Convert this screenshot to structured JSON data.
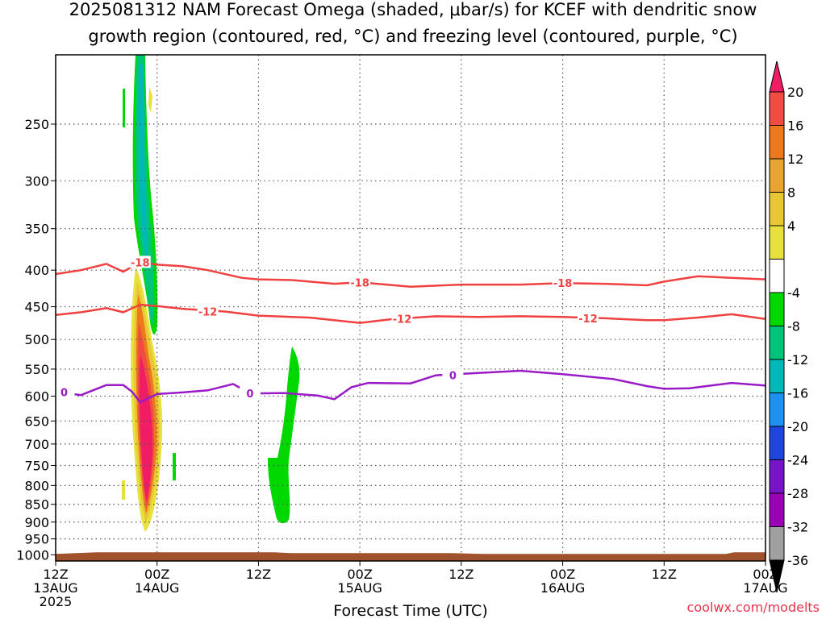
{
  "title_line1": "2025081312 NAM Forecast Omega (shaded, μbar/s) for KCEF with dendritic snow",
  "title_line2": "growth region (contoured, red, °C) and freezing level (contoured, purple, °C)",
  "credit": "coolwx.com/modelts",
  "chart_data": {
    "type": "heatmap",
    "title": "2025081312 NAM Forecast Omega (shaded, μbar/s) for KCEF with dendritic snow growth region (contoured, red, °C) and freezing level (contoured, purple, °C)",
    "xlabel": "Forecast Time (UTC)",
    "ylabel": "",
    "xlim_hours": [
      0,
      84
    ],
    "ylim_hpa": [
      1020,
      200
    ],
    "y_scale": "log",
    "x_ticks": [
      {
        "hour": 0,
        "label": [
          "12Z",
          "13AUG",
          "2025"
        ]
      },
      {
        "hour": 12,
        "label": [
          "00Z",
          "14AUG"
        ]
      },
      {
        "hour": 24,
        "label": [
          "12Z"
        ]
      },
      {
        "hour": 36,
        "label": [
          "00Z",
          "15AUG"
        ]
      },
      {
        "hour": 48,
        "label": [
          "12Z"
        ]
      },
      {
        "hour": 60,
        "label": [
          "00Z",
          "16AUG"
        ]
      },
      {
        "hour": 72,
        "label": [
          "12Z"
        ]
      },
      {
        "hour": 84,
        "label": [
          "00Z",
          "17AUG"
        ]
      }
    ],
    "y_ticks": [
      250,
      300,
      350,
      400,
      450,
      500,
      550,
      600,
      650,
      700,
      750,
      800,
      850,
      900,
      950,
      1000
    ],
    "grid": true,
    "colorbar": {
      "labels": [
        "20",
        "16",
        "12",
        "8",
        "4",
        "-4",
        "-8",
        "-12",
        "-16",
        "-20",
        "-24",
        "-28",
        "-32",
        "-36"
      ],
      "colors": [
        "#f01c64",
        "#f04c42",
        "#ec7a1c",
        "#e8a430",
        "#e8c634",
        "#e8e03c",
        "#ffffff",
        "#00d800",
        "#00c47a",
        "#00b8b8",
        "#1e90f0",
        "#1e46dc",
        "#7814c8",
        "#9a00b4",
        "#a0a0a0",
        "#000000"
      ]
    },
    "contours": [
      {
        "label": "-18",
        "color": "#f04040",
        "points": [
          [
            0,
            405
          ],
          [
            3,
            400
          ],
          [
            6,
            392
          ],
          [
            8,
            402
          ],
          [
            10,
            390
          ],
          [
            12,
            393
          ],
          [
            15,
            395
          ],
          [
            18,
            400
          ],
          [
            22,
            410
          ],
          [
            24,
            412
          ],
          [
            28,
            413
          ],
          [
            33,
            418
          ],
          [
            36,
            416
          ],
          [
            42,
            422
          ],
          [
            48,
            419
          ],
          [
            55,
            419
          ],
          [
            60,
            417
          ],
          [
            65,
            418
          ],
          [
            70,
            420
          ],
          [
            72,
            415
          ],
          [
            76,
            408
          ],
          [
            80,
            410
          ],
          [
            84,
            412
          ]
        ]
      },
      {
        "label": "-12",
        "color": "#f04040",
        "points": [
          [
            0,
            462
          ],
          [
            3,
            458
          ],
          [
            6,
            452
          ],
          [
            8,
            458
          ],
          [
            10,
            447
          ],
          [
            12,
            449
          ],
          [
            15,
            453
          ],
          [
            20,
            457
          ],
          [
            24,
            463
          ],
          [
            30,
            466
          ],
          [
            36,
            474
          ],
          [
            40,
            468
          ],
          [
            45,
            464
          ],
          [
            50,
            465
          ],
          [
            55,
            464
          ],
          [
            60,
            465
          ],
          [
            65,
            467
          ],
          [
            70,
            470
          ],
          [
            72,
            470
          ],
          [
            76,
            466
          ],
          [
            80,
            461
          ],
          [
            84,
            468
          ]
        ]
      },
      {
        "label": "0",
        "color": "#9a1ac8",
        "points": [
          [
            0,
            592
          ],
          [
            3,
            598
          ],
          [
            6,
            579
          ],
          [
            8,
            579
          ],
          [
            9,
            591
          ],
          [
            10,
            612
          ],
          [
            12,
            596
          ],
          [
            15,
            593
          ],
          [
            18,
            589
          ],
          [
            21,
            577
          ],
          [
            23,
            595
          ],
          [
            27,
            594
          ],
          [
            31,
            599
          ],
          [
            33,
            606
          ],
          [
            35,
            583
          ],
          [
            37,
            575
          ],
          [
            42,
            576
          ],
          [
            45,
            561
          ],
          [
            50,
            557
          ],
          [
            55,
            553
          ],
          [
            60,
            559
          ],
          [
            66,
            568
          ],
          [
            70,
            581
          ],
          [
            72,
            586
          ],
          [
            75,
            585
          ],
          [
            80,
            575
          ],
          [
            84,
            580
          ]
        ]
      }
    ],
    "terrain_hpa": 1020,
    "terrain_top_hpa": 992
  }
}
